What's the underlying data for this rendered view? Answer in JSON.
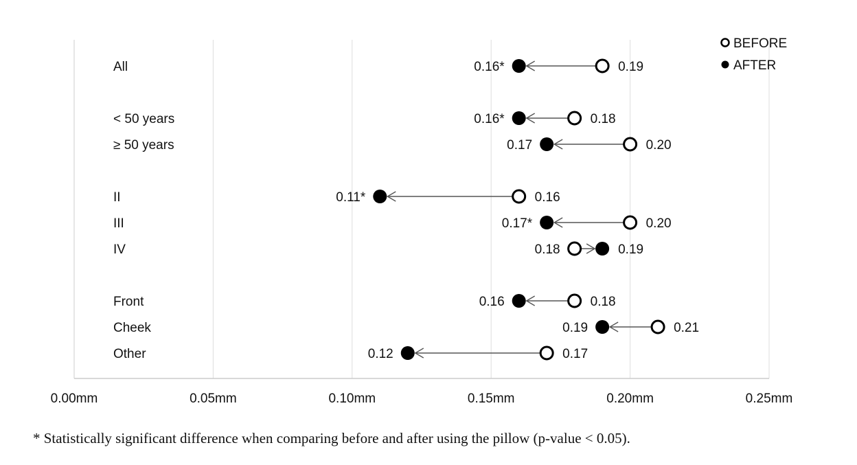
{
  "chart_data": {
    "type": "dumbbell",
    "x_unit": "mm",
    "xlim": [
      0.0,
      0.25
    ],
    "x_ticks": [
      "0.00mm",
      "0.05mm",
      "0.10mm",
      "0.15mm",
      "0.20mm",
      "0.25mm"
    ],
    "grid": "vertical",
    "legend_position": "top-right",
    "legend": [
      {
        "marker": "open-circle",
        "label": "BEFORE"
      },
      {
        "marker": "filled-circle",
        "label": "AFTER"
      }
    ],
    "rows": [
      {
        "category": "All",
        "before": 0.19,
        "after": 0.16,
        "before_label": "0.19",
        "after_label": "0.16*"
      },
      {
        "category": "< 50 years",
        "before": 0.18,
        "after": 0.16,
        "before_label": "0.18",
        "after_label": "0.16*"
      },
      {
        "category": "≥ 50 years",
        "before": 0.2,
        "after": 0.17,
        "before_label": "0.20",
        "after_label": "0.17"
      },
      {
        "category": "II",
        "before": 0.16,
        "after": 0.11,
        "before_label": "0.16",
        "after_label": "0.11*"
      },
      {
        "category": "III",
        "before": 0.2,
        "after": 0.17,
        "before_label": "0.20",
        "after_label": "0.17*"
      },
      {
        "category": "IV",
        "before": 0.18,
        "after": 0.19,
        "before_label": "0.18",
        "after_label": "0.19"
      },
      {
        "category": "Front",
        "before": 0.18,
        "after": 0.16,
        "before_label": "0.18",
        "after_label": "0.16"
      },
      {
        "category": "Cheek",
        "before": 0.21,
        "after": 0.19,
        "before_label": "0.21",
        "after_label": "0.19"
      },
      {
        "category": "Other",
        "before": 0.17,
        "after": 0.12,
        "before_label": "0.17",
        "after_label": "0.12"
      }
    ],
    "colors": {
      "marker": "#000000",
      "line": "#555555",
      "grid": "#dddddd",
      "axis": "#cccccc"
    }
  },
  "footnote": "* Statistically significant difference when comparing before and after using the pillow (p-value < 0.05)."
}
